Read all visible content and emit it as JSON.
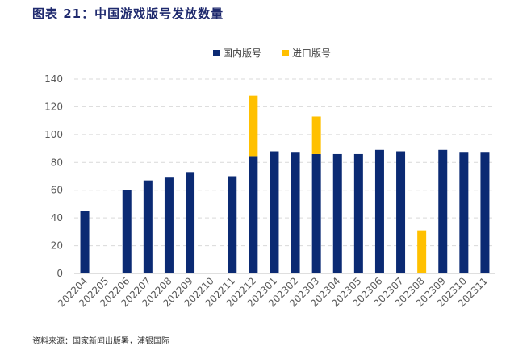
{
  "header": {
    "title": "图表 21：中国游戏版号发放数量"
  },
  "footer": {
    "source": "资料来源：国家新闻出版署，浦银国际"
  },
  "colors": {
    "domestic": "#0b2a73",
    "imported": "#ffc000",
    "grid": "#d9d9d9",
    "rule": "#2a3a8a"
  },
  "chart_data": {
    "type": "bar",
    "stacked": true,
    "categories": [
      "202204",
      "202205",
      "202206",
      "202207",
      "202208",
      "202209",
      "202210",
      "202211",
      "202212",
      "202301",
      "202302",
      "202303",
      "202304",
      "202305",
      "202306",
      "202307",
      "202308",
      "202309",
      "202310",
      "202311"
    ],
    "series": [
      {
        "name": "国内版号",
        "values": [
          45,
          0,
          60,
          67,
          69,
          73,
          0,
          70,
          84,
          88,
          87,
          86,
          86,
          86,
          89,
          88,
          0,
          89,
          87,
          87
        ]
      },
      {
        "name": "进口版号",
        "values": [
          0,
          0,
          0,
          0,
          0,
          0,
          0,
          0,
          44,
          0,
          0,
          27,
          0,
          0,
          0,
          0,
          31,
          0,
          0,
          0
        ]
      }
    ],
    "ylim": [
      0,
      140
    ],
    "yticks": [
      0,
      20,
      40,
      60,
      80,
      100,
      120,
      140
    ],
    "grid": true,
    "legend_position": "top-center",
    "xlabel": "",
    "ylabel": ""
  }
}
